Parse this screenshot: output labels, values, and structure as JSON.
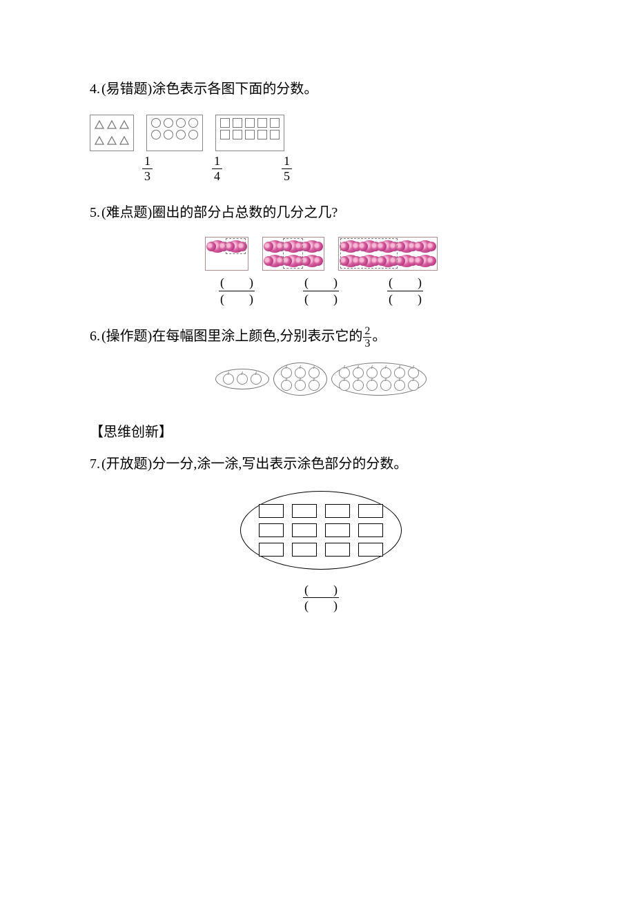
{
  "colors": {
    "text": "#000000",
    "background": "#ffffff",
    "shape_border": "#777777",
    "flower_main": "#d65d9e",
    "flower_dark": "#8c2363",
    "box_border": "#b08b8b"
  },
  "q4": {
    "number": "4.",
    "tag": "(易错题)",
    "text": "涂色表示各图下面的分数。",
    "boxes": [
      {
        "shape": "triangle",
        "rows": 2,
        "cols": 3
      },
      {
        "shape": "circle",
        "rows": 2,
        "cols": 4
      },
      {
        "shape": "square",
        "rows": 2,
        "cols": 5
      }
    ],
    "fractions": [
      {
        "num": "1",
        "den": "3"
      },
      {
        "num": "1",
        "den": "4"
      },
      {
        "num": "1",
        "den": "5"
      }
    ]
  },
  "q5": {
    "number": "5.",
    "tag": "(难点题)",
    "text": "圈出的部分占总数的几分之几?",
    "groups": [
      {
        "rows": 1,
        "cols": 2,
        "circled_cols": 1,
        "circled_rows": 1,
        "circled_start_col": 1,
        "circled_start_row": 0
      },
      {
        "rows": 2,
        "cols": 3,
        "circled_cols": 1,
        "circled_rows": 2,
        "circled_start_col": 1,
        "circled_start_row": 0
      },
      {
        "rows": 2,
        "cols": 5,
        "circled_cols": 3,
        "circled_rows": 2,
        "circled_start_col": 0,
        "circled_start_row": 0
      }
    ],
    "blank": "(　　)"
  },
  "q6": {
    "number": "6.",
    "tag": "(操作题)",
    "text_before": "在每幅图里涂上颜色,分别表示它的",
    "fraction": {
      "num": "2",
      "den": "3"
    },
    "text_after": "。",
    "ovals": [
      {
        "rows": 1,
        "cols": 3
      },
      {
        "rows": 2,
        "cols": 3
      },
      {
        "rows": 2,
        "cols": 6
      }
    ]
  },
  "section_label": "【思维创新】",
  "q7": {
    "number": "7.",
    "tag": "(开放题)",
    "text": "分一分,涂一涂,写出表示涂色部分的分数。",
    "grid": {
      "rows": 3,
      "cols": 4
    },
    "blank": "(　　)"
  }
}
